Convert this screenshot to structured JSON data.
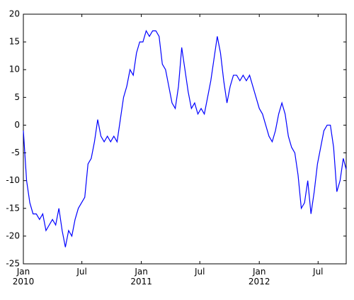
{
  "chart_data": {
    "type": "line",
    "x": [
      "2010-01-01",
      "2010-01-11",
      "2010-01-21",
      "2010-01-31",
      "2010-02-10",
      "2010-02-20",
      "2010-03-02",
      "2010-03-12",
      "2010-03-22",
      "2010-04-01",
      "2010-04-11",
      "2010-04-21",
      "2010-05-01",
      "2010-05-11",
      "2010-05-21",
      "2010-05-31",
      "2010-06-10",
      "2010-06-20",
      "2010-06-30",
      "2010-07-10",
      "2010-07-20",
      "2010-07-30",
      "2010-08-09",
      "2010-08-19",
      "2010-08-29",
      "2010-09-08",
      "2010-09-18",
      "2010-09-28",
      "2010-10-08",
      "2010-10-18",
      "2010-10-28",
      "2010-11-07",
      "2010-11-17",
      "2010-11-27",
      "2010-12-07",
      "2010-12-17",
      "2010-12-27",
      "2011-01-06",
      "2011-01-16",
      "2011-01-26",
      "2011-02-05",
      "2011-02-15",
      "2011-02-25",
      "2011-03-07",
      "2011-03-17",
      "2011-03-27",
      "2011-04-06",
      "2011-04-16",
      "2011-04-26",
      "2011-05-06",
      "2011-05-16",
      "2011-05-26",
      "2011-06-05",
      "2011-06-15",
      "2011-06-25",
      "2011-07-05",
      "2011-07-15",
      "2011-07-25",
      "2011-08-04",
      "2011-08-14",
      "2011-08-24",
      "2011-09-03",
      "2011-09-13",
      "2011-09-23",
      "2011-10-03",
      "2011-10-13",
      "2011-10-23",
      "2011-11-02",
      "2011-11-12",
      "2011-11-22",
      "2011-12-02",
      "2011-12-12",
      "2011-12-22",
      "2012-01-01",
      "2012-01-11",
      "2012-01-21",
      "2012-01-31",
      "2012-02-10",
      "2012-02-20",
      "2012-03-01",
      "2012-03-11",
      "2012-03-21",
      "2012-03-31",
      "2012-04-10",
      "2012-04-20",
      "2012-04-30",
      "2012-05-10",
      "2012-05-20",
      "2012-05-30",
      "2012-06-09",
      "2012-06-19",
      "2012-06-29",
      "2012-07-09",
      "2012-07-19",
      "2012-07-29",
      "2012-08-08",
      "2012-08-18",
      "2012-08-28",
      "2012-09-07",
      "2012-09-17",
      "2012-09-26"
    ],
    "series": [
      {
        "color": "#0000ff",
        "values": [
          -1,
          -10,
          -14,
          -16,
          -16,
          -17,
          -16,
          -19,
          -18,
          -17,
          -18,
          -15,
          -19,
          -22,
          -19,
          -20,
          -17,
          -15,
          -14,
          -13,
          -7,
          -6,
          -3,
          1,
          -2,
          -3,
          -2,
          -3,
          -2,
          -3,
          1,
          5,
          7,
          10,
          9,
          13,
          15,
          15,
          17,
          16,
          17,
          17,
          16,
          11,
          10,
          7,
          4,
          3,
          7,
          14,
          10,
          6,
          3,
          4,
          2,
          3,
          2,
          5,
          8,
          12,
          16,
          13,
          8,
          4,
          7,
          9,
          9,
          8,
          9,
          8,
          9,
          7,
          5,
          3,
          2,
          0,
          -2,
          -3,
          -1,
          2,
          4,
          2,
          -2,
          -4,
          -5,
          -9,
          -15,
          -14,
          -10,
          -16,
          -12,
          -7,
          -4,
          -1,
          0,
          0,
          -4,
          -12,
          -10,
          -6,
          -8
        ]
      }
    ],
    "xlim": [
      "2010-01-01",
      "2012-09-26"
    ],
    "xticks": [
      {
        "value": "2010-01-01",
        "label": "Jan\n2010"
      },
      {
        "value": "2010-07-01",
        "label": "Jul"
      },
      {
        "value": "2011-01-01",
        "label": "Jan\n2011"
      },
      {
        "value": "2011-07-01",
        "label": "Jul"
      },
      {
        "value": "2012-01-01",
        "label": "Jan\n2012"
      },
      {
        "value": "2012-07-01",
        "label": "Jul"
      }
    ],
    "ylim": [
      -25,
      20
    ],
    "yticks": [
      -25,
      -20,
      -15,
      -10,
      -5,
      0,
      5,
      10,
      15,
      20
    ]
  }
}
